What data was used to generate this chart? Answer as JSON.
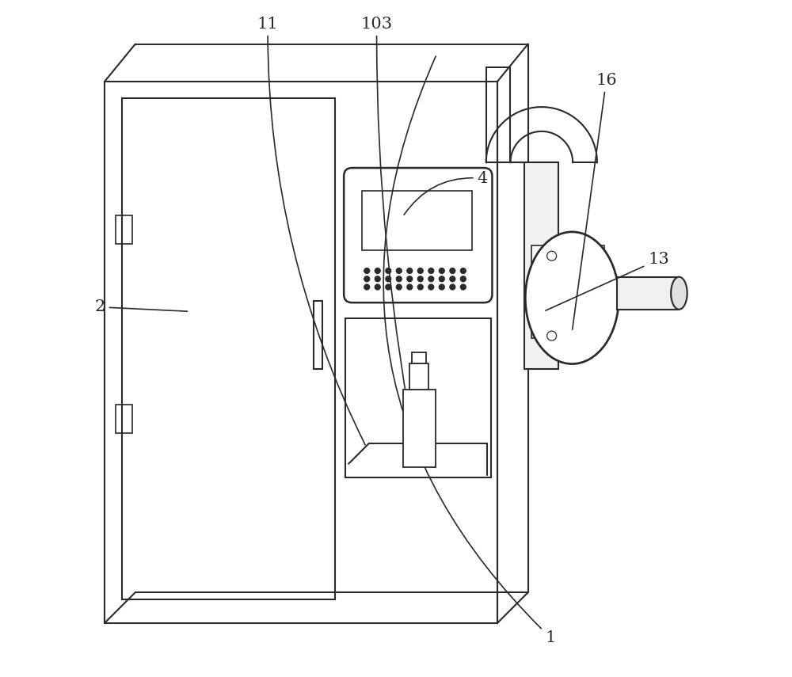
{
  "bg_color": "#ffffff",
  "line_color": "#2a2a2a",
  "lw": 1.5,
  "fig_width": 10.0,
  "fig_height": 8.55
}
